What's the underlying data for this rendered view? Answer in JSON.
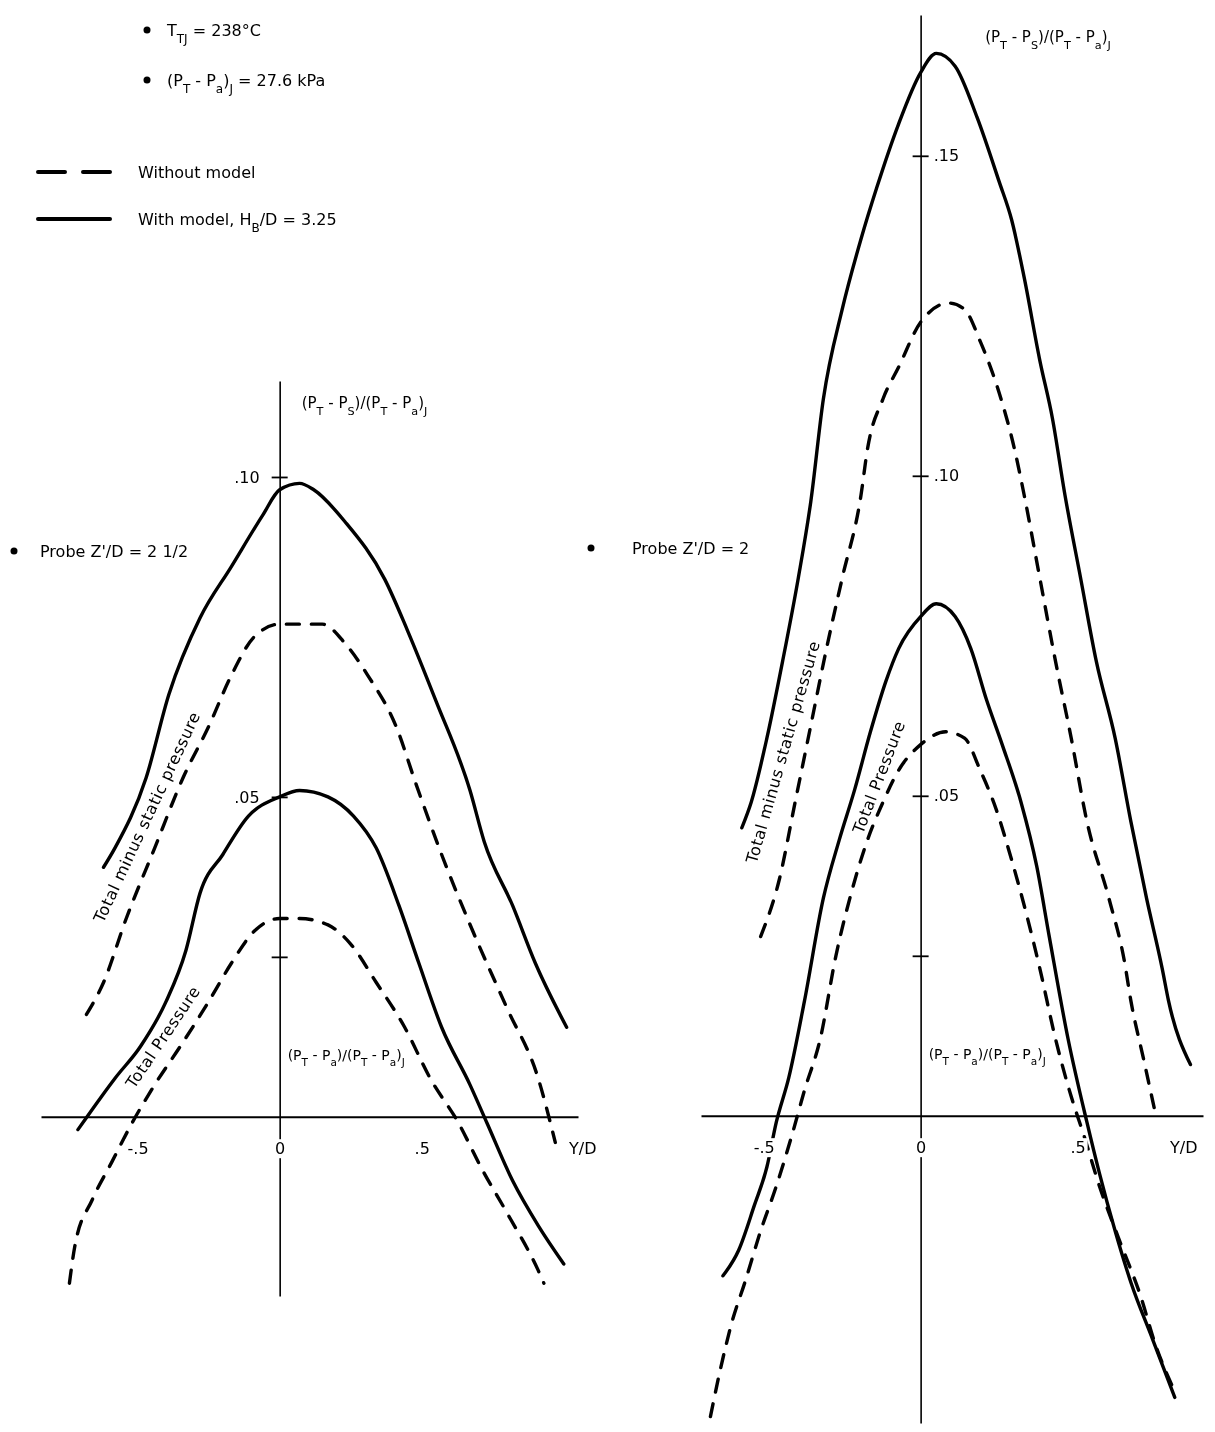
{
  "chart_data": [
    {
      "type": "line",
      "xlabel": "Y/D",
      "ylabel": "(P$_{T}$ - P$_{S}$)/(P$_{T}$ - P$_{a}$)$_{J}$",
      "xlim": [
        -0.84,
        1.05
      ],
      "ylim": [
        -0.028,
        0.115
      ],
      "xticks": [
        {
          "value": -0.5,
          "label": "-.5"
        },
        {
          "value": 0,
          "label": "0"
        },
        {
          "value": 0.5,
          "label": ".5"
        }
      ],
      "yticks": [
        {
          "value": 0.025,
          "label": null
        },
        {
          "value": 0.05,
          "label": ".05"
        },
        {
          "value": 0.1,
          "label": ".10"
        }
      ],
      "legend": "top left",
      "annotations": [
        "(P$_{T}$ - P$_{a}$)/(P$_{T}$ - P$_{a}$)$_{J}$",
        "Probe Z'/D = 2 1/2",
        "Total minus static pressure",
        "Total Pressure",
        "T$_{TJ}$ = 238°C",
        "(P$_{T}$ - P$_{a}$)$_{J}$ = 27.6 kPa"
      ],
      "series": [
        {
          "name": "Without model",
          "color": "#000000",
          "line_style": "dashed",
          "x": [
            -0.68,
            -0.62,
            -0.54,
            -0.44,
            -0.34,
            -0.25,
            -0.17,
            -0.09,
            0,
            0.07,
            0.15,
            0.23,
            0.31,
            0.41,
            0.48,
            0.57,
            0.68,
            0.8,
            0.91,
            0.97
          ],
          "values": [
            0.016,
            0.021,
            0.031,
            0.042,
            0.053,
            0.061,
            0.069,
            0.075,
            0.077,
            0.077,
            0.077,
            0.074,
            0.069,
            0.061,
            0.052,
            0.041,
            0.029,
            0.017,
            0.006,
            -0.004
          ]
        },
        {
          "name": "With model, H$_{B}$/D = 3.25",
          "color": "#000000",
          "line_style": "solid",
          "x": [
            -0.62,
            -0.58,
            -0.47,
            -0.39,
            -0.28,
            -0.17,
            -0.06,
            0,
            0.07,
            0.12,
            0.23,
            0.37,
            0.45,
            0.55,
            0.67,
            0.72,
            0.82,
            0.9,
            1.01
          ],
          "values": [
            0.039,
            0.042,
            0.053,
            0.066,
            0.078,
            0.086,
            0.094,
            0.098,
            0.099,
            0.098,
            0.093,
            0.084,
            0.076,
            0.065,
            0.051,
            0.043,
            0.033,
            0.024,
            0.014
          ]
        },
        {
          "color": "#000000",
          "line_style": "dashed",
          "x": [
            -0.74,
            -0.72,
            -0.66,
            -0.59,
            -0.52,
            -0.44,
            -0.35,
            -0.25,
            -0.17,
            -0.09,
            0,
            0.07,
            0.17,
            0.25,
            0.34,
            0.44,
            0.53,
            0.63,
            0.71,
            0.8,
            0.91,
            0.93
          ],
          "values": [
            -0.026,
            -0.02,
            -0.013,
            -0.007,
            -0.001,
            0.005,
            0.011,
            0.018,
            0.024,
            0.029,
            0.031,
            0.031,
            0.03,
            0.027,
            0.021,
            0.014,
            0.006,
            -0.001,
            -0.008,
            -0.015,
            -0.024,
            -0.026
          ]
        },
        {
          "color": "#000000",
          "line_style": "solid",
          "x": [
            -0.71,
            -0.63,
            -0.58,
            -0.49,
            -0.4,
            -0.33,
            -0.28,
            -0.2,
            -0.11,
            0,
            0.07,
            0.17,
            0.26,
            0.34,
            0.42,
            0.49,
            0.57,
            0.67,
            0.73,
            0.82,
            0.91,
            1.0
          ],
          "values": [
            -0.002,
            0.003,
            0.006,
            0.011,
            0.018,
            0.026,
            0.035,
            0.041,
            0.047,
            0.05,
            0.051,
            0.05,
            0.047,
            0.042,
            0.033,
            0.024,
            0.014,
            0.005,
            -0.001,
            -0.01,
            -0.017,
            -0.023
          ]
        }
      ]
    },
    {
      "type": "line",
      "xlabel": "Y/D",
      "ylabel": "(P$_{T}$ - P$_{S}$)/(P$_{T}$ - P$_{a}$)$_{J}$",
      "xlim": [
        -0.7,
        0.9
      ],
      "ylim": [
        -0.048,
        0.172
      ],
      "xticks": [
        {
          "value": -0.5,
          "label": "-.5"
        },
        {
          "value": 0,
          "label": "0"
        },
        {
          "value": 0.5,
          "label": ".5"
        }
      ],
      "yticks": [
        {
          "value": 0.025,
          "label": null
        },
        {
          "value": 0.05,
          "label": ".05"
        },
        {
          "value": 0.1,
          "label": ".10"
        },
        {
          "value": 0.15,
          "label": ".15"
        }
      ],
      "annotations": [
        "(P$_{T}$ - P$_{a}$)/(P$_{T}$ - P$_{a}$)$_{J}$",
        "Probe Z'/D = 2",
        "Total minus static pressure",
        "Total Pressure"
      ],
      "series": [
        {
          "color": "#000000",
          "line_style": "dashed",
          "x": [
            -0.51,
            -0.45,
            -0.4,
            -0.35,
            -0.3,
            -0.25,
            -0.19,
            -0.17,
            -0.12,
            -0.07,
            0,
            0.09,
            0.14,
            0.19,
            0.25,
            0.3,
            0.33,
            0.38,
            0.43,
            0.48,
            0.53,
            0.6,
            0.65,
            0.67,
            0.71,
            0.75
          ],
          "values": [
            0.028,
            0.037,
            0.049,
            0.061,
            0.073,
            0.084,
            0.097,
            0.104,
            0.112,
            0.117,
            0.124,
            0.127,
            0.126,
            0.121,
            0.113,
            0.104,
            0.097,
            0.084,
            0.071,
            0.059,
            0.046,
            0.034,
            0.024,
            0.018,
            0.009,
            0
          ]
        },
        {
          "color": "#000000",
          "line_style": "solid",
          "x": [
            -0.57,
            -0.54,
            -0.49,
            -0.44,
            -0.39,
            -0.35,
            -0.31,
            -0.25,
            -0.19,
            -0.14,
            -0.07,
            0,
            0.05,
            0.11,
            0.18,
            0.25,
            0.29,
            0.33,
            0.38,
            0.42,
            0.46,
            0.51,
            0.56,
            0.62,
            0.67,
            0.72,
            0.77,
            0.79,
            0.86
          ],
          "values": [
            0.045,
            0.049,
            0.059,
            0.071,
            0.084,
            0.096,
            0.112,
            0.126,
            0.137,
            0.145,
            0.155,
            0.163,
            0.166,
            0.164,
            0.156,
            0.146,
            0.14,
            0.131,
            0.118,
            0.109,
            0.097,
            0.084,
            0.071,
            0.059,
            0.046,
            0.034,
            0.023,
            0.018,
            0.008
          ]
        },
        {
          "color": "#000000",
          "line_style": "dashed",
          "x": [
            -0.67,
            -0.64,
            -0.6,
            -0.56,
            -0.51,
            -0.46,
            -0.41,
            -0.37,
            -0.32,
            -0.27,
            -0.22,
            -0.17,
            -0.12,
            -0.07,
            0,
            0.08,
            0.14,
            0.19,
            0.24,
            0.29,
            0.34,
            0.38,
            0.43,
            0.48,
            0.52,
            0.57,
            0.63,
            0.7,
            0.75,
            0.8
          ],
          "values": [
            -0.047,
            -0.04,
            -0.032,
            -0.026,
            -0.018,
            -0.011,
            -0.003,
            0.004,
            0.012,
            0.025,
            0.035,
            0.043,
            0.049,
            0.054,
            0.058,
            0.06,
            0.059,
            0.054,
            0.048,
            0.04,
            0.031,
            0.023,
            0.012,
            0.003,
            -0.003,
            -0.011,
            -0.019,
            -0.028,
            -0.036,
            -0.042
          ]
        },
        {
          "color": "#000000",
          "line_style": "solid",
          "x": [
            -0.63,
            -0.58,
            -0.53,
            -0.49,
            -0.46,
            -0.42,
            -0.37,
            -0.31,
            -0.26,
            -0.21,
            -0.16,
            -0.11,
            -0.07,
            0,
            0.05,
            0.11,
            0.16,
            0.21,
            0.26,
            0.32,
            0.37,
            0.41,
            0.47,
            0.53,
            0.57,
            0.62,
            0.67,
            0.74,
            0.81
          ],
          "values": [
            -0.025,
            -0.021,
            -0.014,
            -0.008,
            -0.001,
            0.006,
            0.018,
            0.034,
            0.043,
            0.051,
            0.06,
            0.068,
            0.073,
            0.078,
            0.08,
            0.078,
            0.073,
            0.065,
            0.058,
            0.049,
            0.039,
            0.028,
            0.012,
            -0.001,
            -0.009,
            -0.018,
            -0.026,
            -0.035,
            -0.044
          ]
        }
      ]
    }
  ]
}
